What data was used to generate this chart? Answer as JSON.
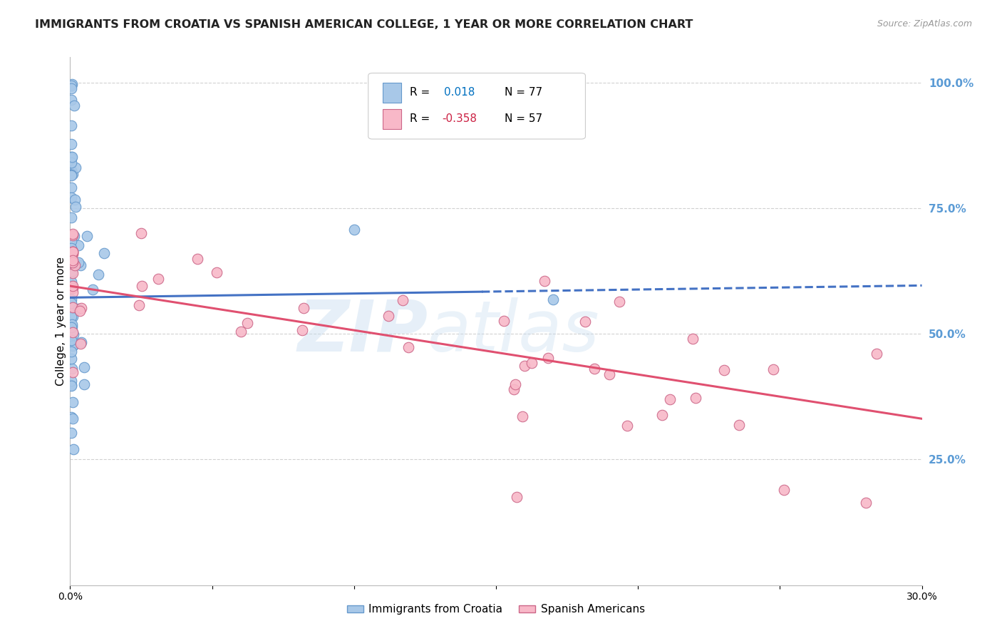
{
  "title": "IMMIGRANTS FROM CROATIA VS SPANISH AMERICAN COLLEGE, 1 YEAR OR MORE CORRELATION CHART",
  "source": "Source: ZipAtlas.com",
  "ylabel": "College, 1 year or more",
  "xlim": [
    0.0,
    0.3
  ],
  "ylim": [
    0.0,
    1.05
  ],
  "xtick_vals": [
    0.0,
    0.05,
    0.1,
    0.15,
    0.2,
    0.25,
    0.3
  ],
  "xtick_labels": [
    "0.0%",
    "",
    "",
    "",
    "",
    "",
    "30.0%"
  ],
  "ytick_vals_right": [
    0.25,
    0.5,
    0.75,
    1.0
  ],
  "ytick_labels_right": [
    "25.0%",
    "50.0%",
    "75.0%",
    "100.0%"
  ],
  "color_blue": "#a8c8e8",
  "color_blue_edge": "#6699cc",
  "color_pink": "#f8b8c8",
  "color_pink_edge": "#cc6688",
  "color_blue_line": "#4472c4",
  "color_pink_line": "#e05070",
  "color_r_blue": "#0070c0",
  "color_r_pink": "#e0304050",
  "right_axis_color": "#5b9bd5",
  "grid_color": "#cccccc",
  "background_color": "#ffffff",
  "blue_line_solid_end": 0.145,
  "blue_line_intercept": 0.572,
  "blue_line_slope": 0.08,
  "pink_line_intercept": 0.595,
  "pink_line_slope": -0.88
}
